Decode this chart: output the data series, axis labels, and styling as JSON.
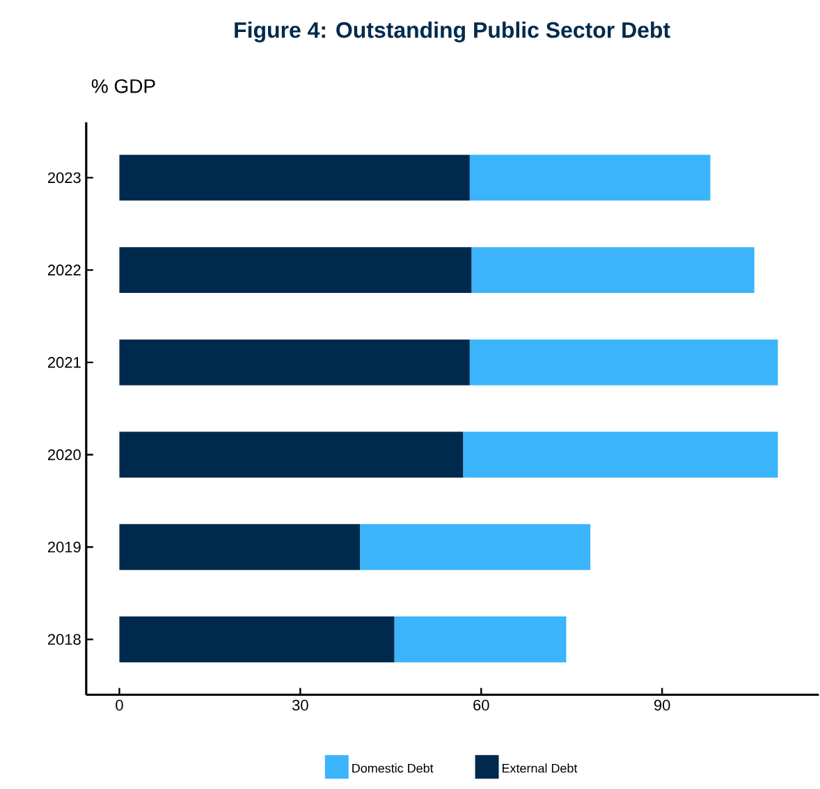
{
  "chart_data": {
    "type": "bar",
    "orientation": "horizontal",
    "stacked": true,
    "title": "Figure 4: Outstanding Public Sector Debt",
    "ylabel": "% GDP",
    "categories": [
      "2023",
      "2022",
      "2021",
      "2020",
      "2019",
      "2018"
    ],
    "series": [
      {
        "name": "External Debt",
        "color": "#002a4d",
        "values": [
          58.1,
          58.4,
          58.1,
          57.0,
          39.9,
          45.6
        ]
      },
      {
        "name": "Domestic Debt",
        "color": "#3bb4fb",
        "values": [
          39.9,
          46.9,
          51.1,
          52.2,
          38.2,
          28.5
        ]
      }
    ],
    "xlim": [
      -5.5,
      116
    ],
    "xticks": [
      0,
      30,
      60,
      90
    ],
    "legend": "bottom"
  }
}
